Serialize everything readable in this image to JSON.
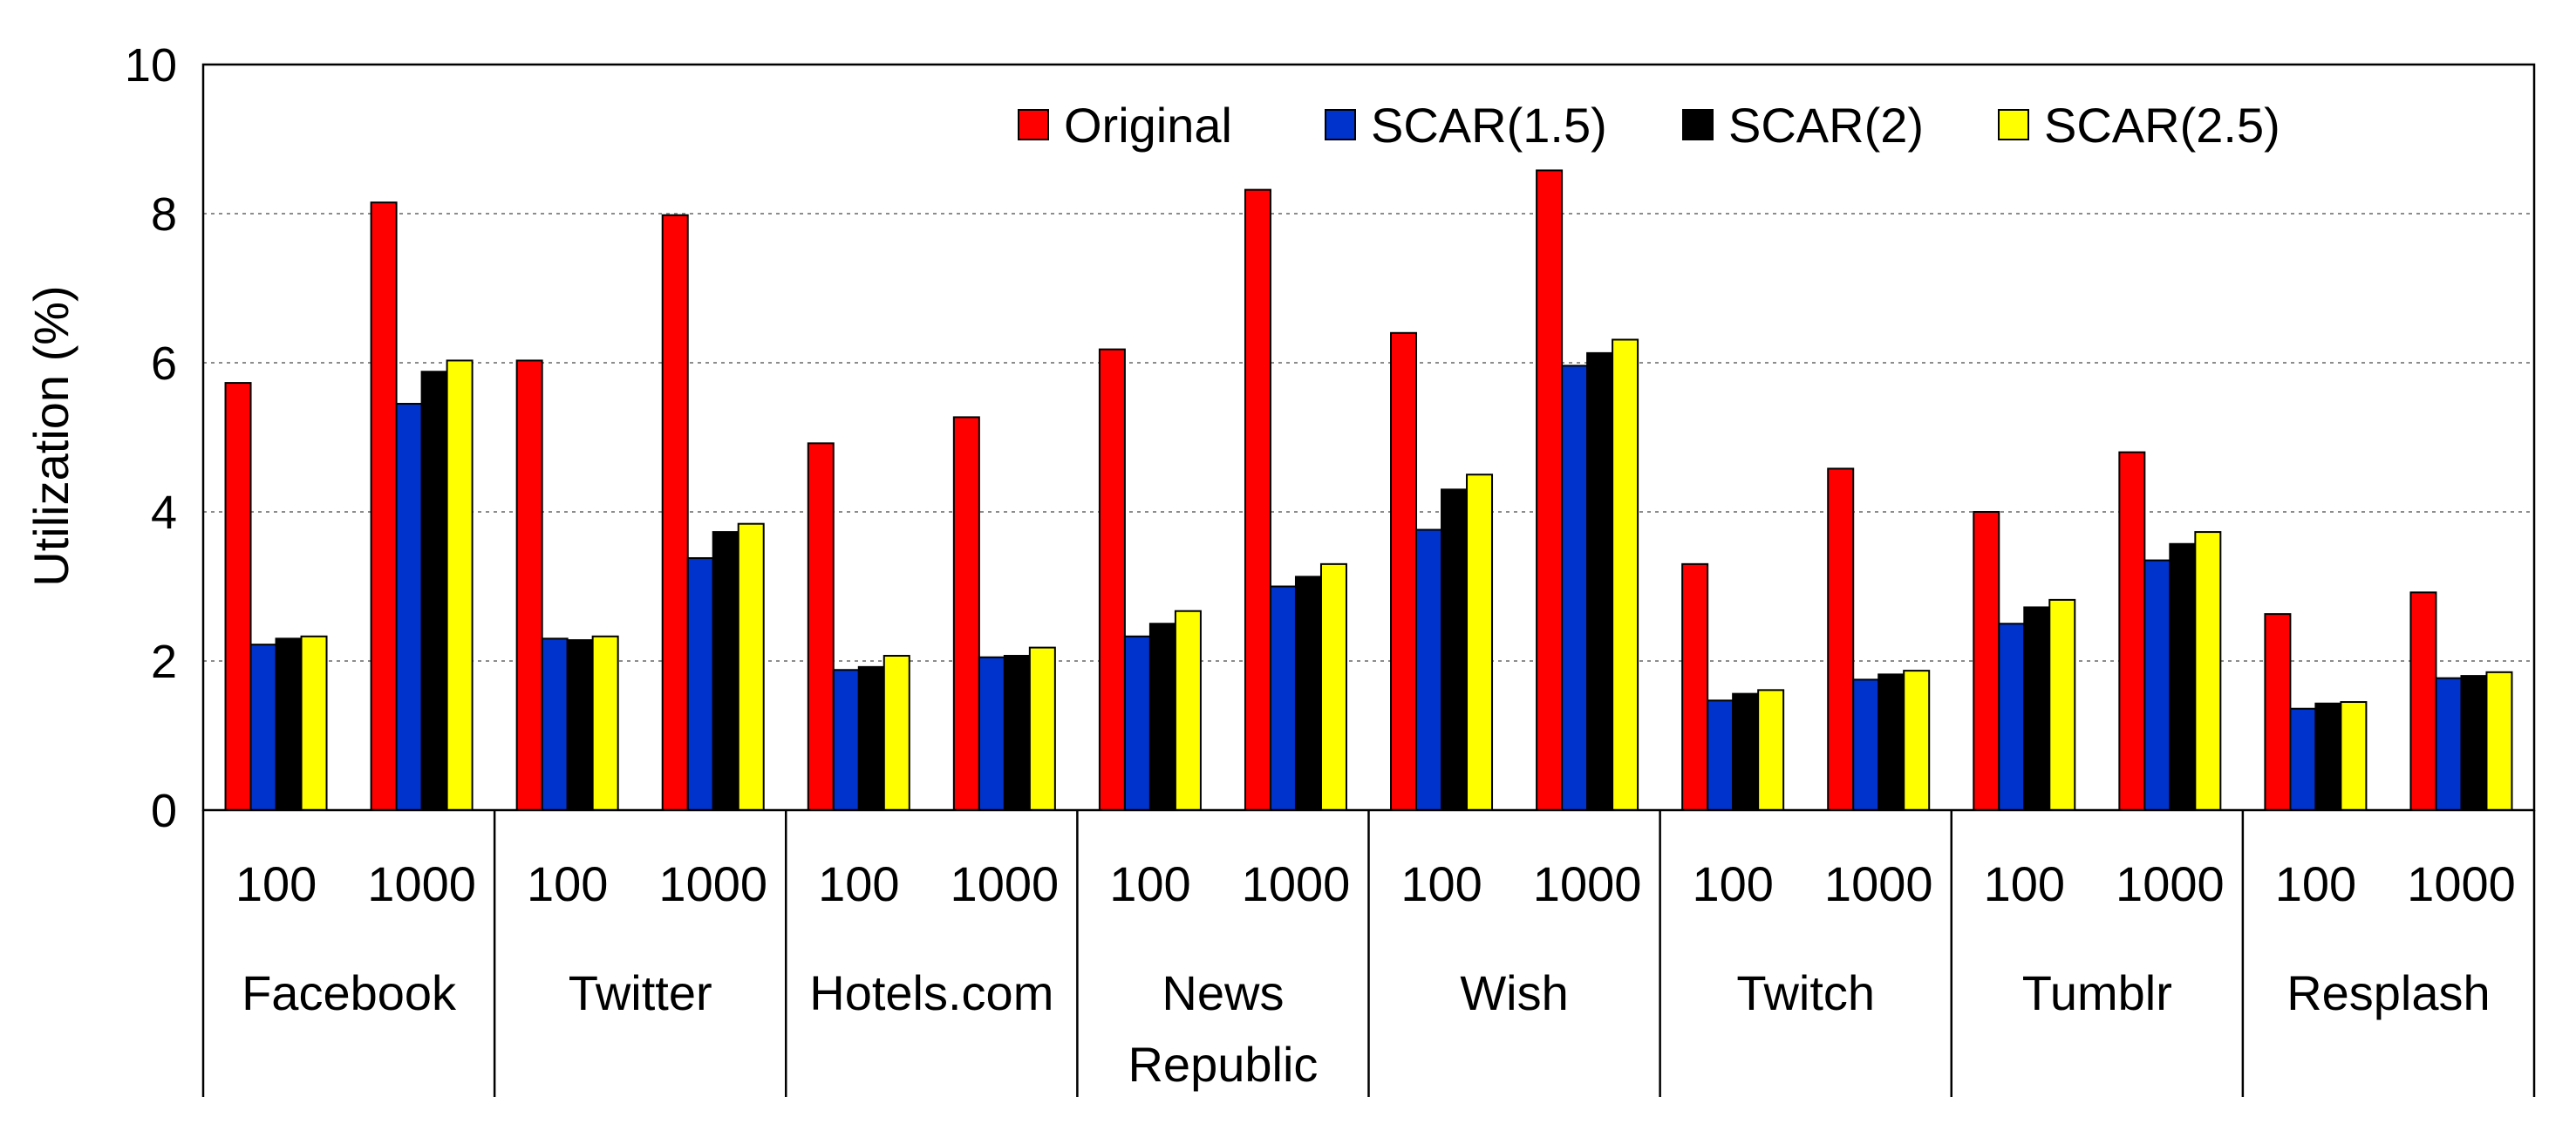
{
  "chart_data": {
    "type": "bar",
    "ylabel": "Utilization (%)",
    "ylim": [
      0,
      10
    ],
    "yticks": [
      "0",
      "2",
      "4",
      "6",
      "8",
      "10"
    ],
    "grid": true,
    "legend_position": "top-right",
    "groups": [
      "Facebook",
      "Twitter",
      "Hotels.com",
      "News Republic",
      "Wish",
      "Twitch",
      "Tumblr",
      "Resplash"
    ],
    "group_label_lines": [
      [
        "Facebook"
      ],
      [
        "Twitter"
      ],
      [
        "Hotels.com"
      ],
      [
        "News",
        "Republic"
      ],
      [
        "Wish"
      ],
      [
        "Twitch"
      ],
      [
        "Tumblr"
      ],
      [
        "Resplash"
      ]
    ],
    "subcategories": [
      "100",
      "1000"
    ],
    "series": [
      {
        "name": "Original",
        "color": "#FF0000",
        "values": [
          5.73,
          8.15,
          6.03,
          7.98,
          4.92,
          5.27,
          6.18,
          8.32,
          6.4,
          8.58,
          3.3,
          4.58,
          4.0,
          4.8,
          2.63,
          2.92
        ]
      },
      {
        "name": "SCAR(1.5)",
        "color": "#0033CC",
        "values": [
          2.22,
          5.45,
          2.3,
          3.38,
          1.88,
          2.05,
          2.33,
          3.0,
          3.76,
          5.96,
          1.47,
          1.75,
          2.5,
          3.35,
          1.36,
          1.77
        ]
      },
      {
        "name": "SCAR(2)",
        "color": "#000000",
        "values": [
          2.3,
          5.88,
          2.28,
          3.73,
          1.92,
          2.07,
          2.5,
          3.13,
          4.3,
          6.13,
          1.56,
          1.82,
          2.72,
          3.57,
          1.43,
          1.8
        ]
      },
      {
        "name": "SCAR(2.5)",
        "color": "#FFFF00",
        "values": [
          2.33,
          6.03,
          2.33,
          3.84,
          2.07,
          2.18,
          2.67,
          3.3,
          4.5,
          6.31,
          1.61,
          1.87,
          2.82,
          3.73,
          1.45,
          1.85
        ]
      }
    ]
  }
}
